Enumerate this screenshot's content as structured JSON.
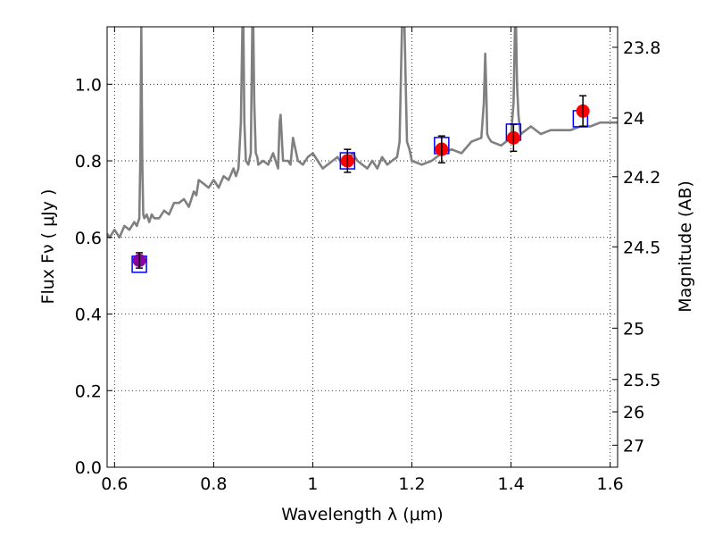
{
  "chart_data": {
    "type": "scatter",
    "xlabel": "Wavelength  λ (μm)",
    "ylabel": "Flux  Fν  ( μJy )",
    "y2label": "Magnitude (AB)",
    "xlim": [
      0.585,
      1.615
    ],
    "ylim": [
      0.0,
      1.15
    ],
    "grid": true,
    "x_ticks": [
      0.6,
      0.8,
      1.0,
      1.2,
      1.4,
      1.6
    ],
    "x_tick_labels": [
      "0.6",
      "0.8",
      "1",
      "1.2",
      "1.4",
      "1.6"
    ],
    "y_ticks": [
      0.0,
      0.2,
      0.4,
      0.6,
      0.8,
      1.0
    ],
    "y_tick_labels": [
      "0.0",
      "0.2",
      "0.4",
      "0.6",
      "0.8",
      "1.0"
    ],
    "y2_ticks": [
      {
        "mag": 23.8,
        "label": "23.8"
      },
      {
        "mag": 24.0,
        "label": "24"
      },
      {
        "mag": 24.2,
        "label": "24.2"
      },
      {
        "mag": 24.5,
        "label": "24.5"
      },
      {
        "mag": 25.0,
        "label": "25"
      },
      {
        "mag": 25.5,
        "label": "25.5"
      },
      {
        "mag": 26.0,
        "label": "26"
      },
      {
        "mag": 27.0,
        "label": "27"
      }
    ],
    "colors": {
      "spectrum": "#808080",
      "model_box": "#0000ff",
      "observed": "#ff0000",
      "observed_blue_band": "#8b00a0",
      "errorbar": "#000000",
      "grid": "#000000"
    },
    "spectrum": {
      "x": [
        0.585,
        0.59,
        0.6,
        0.61,
        0.62,
        0.63,
        0.64,
        0.645,
        0.65,
        0.652,
        0.654,
        0.656,
        0.658,
        0.66,
        0.665,
        0.67,
        0.675,
        0.68,
        0.69,
        0.7,
        0.71,
        0.72,
        0.73,
        0.74,
        0.75,
        0.76,
        0.765,
        0.77,
        0.78,
        0.79,
        0.8,
        0.81,
        0.82,
        0.83,
        0.84,
        0.845,
        0.85,
        0.855,
        0.858,
        0.86,
        0.862,
        0.865,
        0.87,
        0.875,
        0.878,
        0.88,
        0.882,
        0.885,
        0.888,
        0.89,
        0.9,
        0.91,
        0.92,
        0.93,
        0.933,
        0.935,
        0.94,
        0.95,
        0.955,
        0.96,
        0.97,
        0.98,
        0.99,
        1.0,
        1.01,
        1.02,
        1.03,
        1.04,
        1.05,
        1.06,
        1.07,
        1.08,
        1.09,
        1.1,
        1.11,
        1.12,
        1.13,
        1.14,
        1.15,
        1.16,
        1.17,
        1.175,
        1.18,
        1.185,
        1.19,
        1.195,
        1.2,
        1.22,
        1.24,
        1.26,
        1.28,
        1.3,
        1.32,
        1.34,
        1.345,
        1.348,
        1.35,
        1.352,
        1.355,
        1.36,
        1.38,
        1.4,
        1.402,
        1.405,
        1.408,
        1.41,
        1.412,
        1.415,
        1.418,
        1.42,
        1.43,
        1.44,
        1.46,
        1.48,
        1.5,
        1.52,
        1.54,
        1.56,
        1.58,
        1.6,
        1.615
      ],
      "y": [
        0.61,
        0.6,
        0.62,
        0.6,
        0.63,
        0.62,
        0.64,
        0.63,
        0.65,
        0.8,
        1.15,
        0.8,
        0.66,
        0.65,
        0.66,
        0.64,
        0.66,
        0.65,
        0.65,
        0.67,
        0.66,
        0.69,
        0.69,
        0.7,
        0.68,
        0.72,
        0.71,
        0.75,
        0.74,
        0.73,
        0.75,
        0.73,
        0.76,
        0.75,
        0.78,
        0.76,
        0.78,
        0.9,
        1.15,
        1.15,
        0.9,
        0.8,
        0.79,
        0.82,
        1.15,
        1.15,
        0.95,
        0.82,
        0.81,
        0.79,
        0.8,
        0.79,
        0.82,
        0.78,
        0.9,
        0.92,
        0.8,
        0.8,
        0.79,
        0.86,
        0.8,
        0.79,
        0.81,
        0.82,
        0.8,
        0.78,
        0.79,
        0.8,
        0.81,
        0.79,
        0.8,
        0.82,
        0.8,
        0.79,
        0.78,
        0.8,
        0.78,
        0.81,
        0.79,
        0.8,
        0.81,
        0.85,
        1.15,
        1.15,
        0.85,
        0.83,
        0.8,
        0.79,
        0.8,
        0.82,
        0.83,
        0.82,
        0.85,
        0.86,
        0.95,
        1.08,
        0.99,
        0.87,
        0.86,
        0.85,
        0.84,
        0.86,
        0.9,
        0.95,
        1.15,
        1.15,
        1.0,
        0.92,
        0.88,
        0.87,
        0.88,
        0.89,
        0.87,
        0.88,
        0.88,
        0.88,
        0.89,
        0.89,
        0.9,
        0.9,
        0.9
      ]
    },
    "model_photometry": {
      "x": [
        0.65,
        1.07,
        1.26,
        1.405,
        1.54
      ],
      "y": [
        0.53,
        0.8,
        0.84,
        0.875,
        0.91
      ]
    },
    "observed_photometry": {
      "x": [
        0.65,
        1.07,
        1.26,
        1.405,
        1.545
      ],
      "y": [
        0.54,
        0.8,
        0.83,
        0.86,
        0.93
      ],
      "yerr": [
        0.02,
        0.03,
        0.035,
        0.035,
        0.04
      ]
    }
  }
}
